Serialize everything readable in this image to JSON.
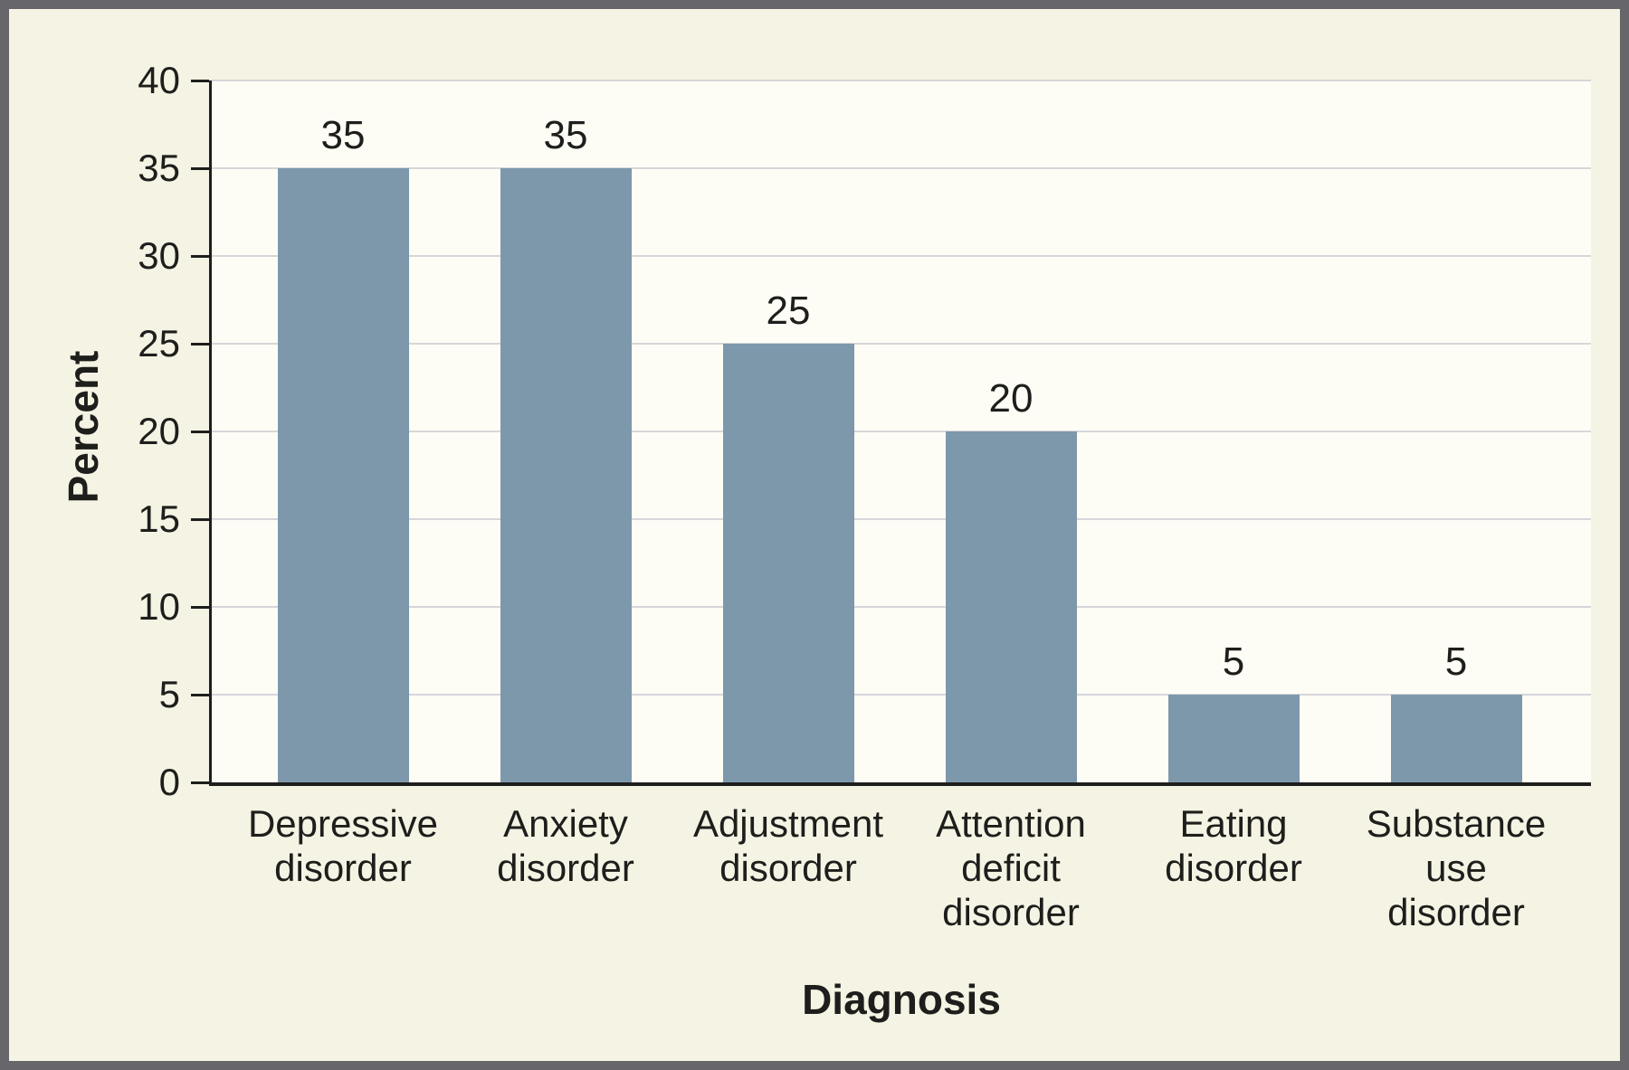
{
  "chart_data": {
    "type": "bar",
    "title": "",
    "categories": [
      "Depressive\ndisorder",
      "Anxiety\ndisorder",
      "Adjustment\ndisorder",
      "Attention\ndeficit\ndisorder",
      "Eating\ndisorder",
      "Substance\nuse\ndisorder"
    ],
    "values": [
      35,
      35,
      25,
      20,
      5,
      5
    ],
    "value_labels": [
      "35",
      "35",
      "25",
      "20",
      "5",
      "5"
    ],
    "xlabel": "Diagnosis",
    "ylabel": "Percent",
    "ylim": [
      0,
      40
    ],
    "yticks": [
      0,
      5,
      10,
      15,
      20,
      25,
      30,
      35,
      40
    ],
    "grid": true,
    "legend": "none",
    "colors": {
      "bar": "#7d98ab",
      "plot_background": "#fdfdf6",
      "page_background": "#f5f4e4",
      "gridline": "#d6d6da",
      "axis": "#1e1e1c",
      "text": "#1e1e1c",
      "frame_border": "#67676b"
    }
  }
}
